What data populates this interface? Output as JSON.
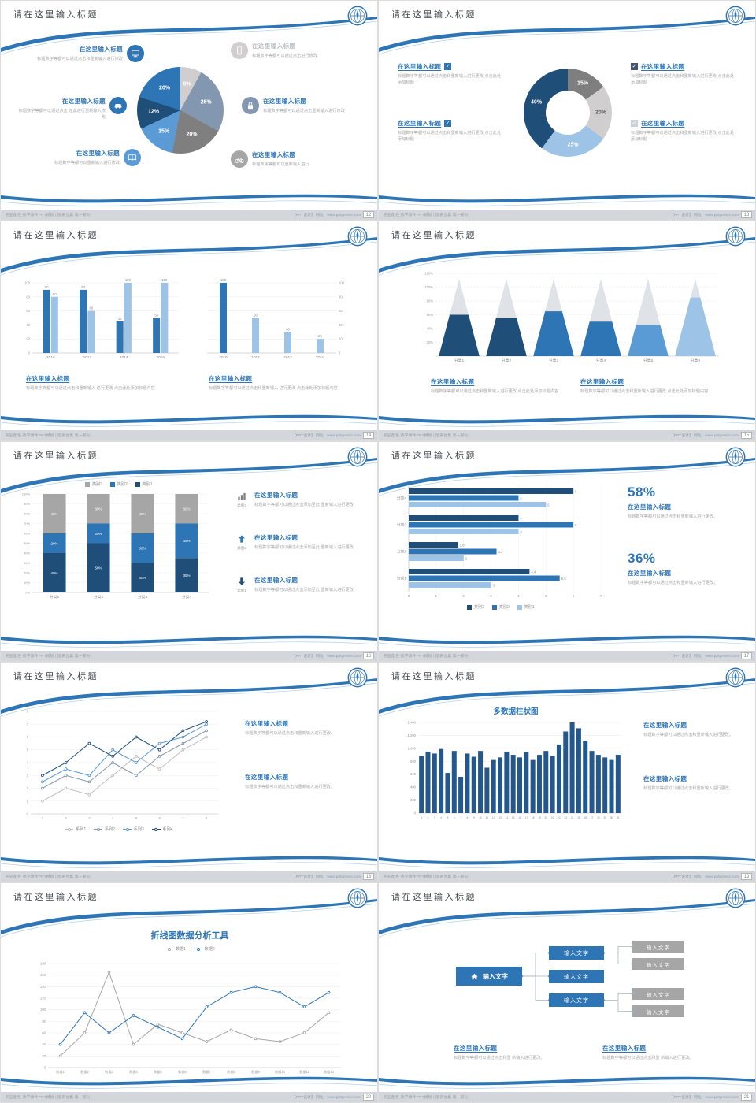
{
  "theme": {
    "accent": "#2e75b6",
    "accent_dark": "#1f4e79",
    "accent_mid": "#5b9bd5",
    "accent_light": "#9dc3e6",
    "gray_dark": "#7f7f7f",
    "gray": "#a6a6a6",
    "gray_light": "#d0cece"
  },
  "common": {
    "slide_title": "请在这里输入标题",
    "footer_left": "校园配色·教学课件PPT模板 | 图表合集 第一部分",
    "footer_right": "【PPT设计】 网址：www.pptgenius.com",
    "heading": "在这里输入标题"
  },
  "slides": [
    {
      "page": "12",
      "left_items": [
        {
          "icon": "monitor",
          "color": "#2e75b6",
          "heading": "在这里输入标题",
          "text": "标题数字等都可以通过点击和重新输入进行修改"
        },
        {
          "icon": "car",
          "color": "#2e75b6",
          "heading": "在这里输入标题",
          "text": "标题数字等都可以通过点击 在此进行重新输入修改"
        },
        {
          "icon": "book",
          "color": "#5b9bd5",
          "heading": "在这里输入标题",
          "text": "标题数字等都可以重新输入进行修改"
        }
      ],
      "right_items": [
        {
          "icon": "phone",
          "color": "#d0cece",
          "heading": "在这里输入标题",
          "text": "标题数字等都可以通过点击进行修改"
        },
        {
          "icon": "lock",
          "color": "#8497b0",
          "heading": "在这里输入标题",
          "text": "标题数字等都可以通过点击重新输入进行修改"
        },
        {
          "icon": "bike",
          "color": "#a6a6a6",
          "heading": "在这里输入标题",
          "text": "标题数字等都可以重新输入进行"
        }
      ],
      "chart_data": {
        "type": "pie",
        "slices": [
          {
            "label": "8%",
            "value": 8,
            "color": "#d0cece"
          },
          {
            "label": "25%",
            "value": 25,
            "color": "#8497b0"
          },
          {
            "label": "20%",
            "value": 20,
            "color": "#7f7f7f"
          },
          {
            "label": "15%",
            "value": 15,
            "color": "#5b9bd5"
          },
          {
            "label": "12%",
            "value": 12,
            "color": "#1f4e79"
          },
          {
            "label": "20%",
            "value": 20,
            "color": "#2e75b6"
          }
        ]
      }
    },
    {
      "page": "13",
      "left_items": [
        {
          "heading": "在这里输入标题",
          "checkbox_color": "#2e75b6",
          "text": "标题数字等都可以通过点击和重新输入进行更改 点击此处添加标题"
        },
        {
          "heading": "在这里输入标题",
          "checkbox_color": "#2e75b6",
          "text": "标题数字等都可以通过点击和重新输入进行更改 点击此处添加标题"
        }
      ],
      "right_items": [
        {
          "heading": "在这里输入标题",
          "checkbox_color": "#44546a",
          "text": "标题数字等都可以通过点击和重新输入进行更改 点击此处添加标题"
        },
        {
          "heading": "在这里输入标题",
          "checkbox_color": "#c9d1d9",
          "text": "标题数字等都可以通过点击和重新输入进行更改 点击此处添加标题"
        }
      ],
      "chart_data": {
        "type": "donut",
        "hole": 0.5,
        "slices": [
          {
            "label": "15%",
            "value": 15,
            "color": "#7f7f7f"
          },
          {
            "label": "20%",
            "value": 20,
            "color": "#d0cece",
            "label_color": "#595959"
          },
          {
            "label": "25%",
            "value": 25,
            "color": "#9dc3e6"
          },
          {
            "label": "40%",
            "value": 40,
            "color": "#1f4e79"
          }
        ]
      }
    },
    {
      "page": "14",
      "blocks": [
        {
          "heading": "在这里输入标题",
          "text": "标题数字等都可以通过点击和重新输入 进行更改 点击此处添加标题内容"
        },
        {
          "heading": "在这里输入标题",
          "text": "标题数字等都可以通过点击和重新输入 进行更改 点击此处添加标题内容"
        }
      ],
      "chart_data": [
        {
          "type": "bar",
          "ymax": 100,
          "ticks_side": "left",
          "yticks": [
            "0",
            "20",
            "40",
            "60",
            "80",
            "100"
          ],
          "categories": [
            "2010",
            "2012",
            "2014",
            "2016"
          ],
          "series": [
            {
              "name": "系列1",
              "color": "#2e75b6",
              "values": [
                90,
                90,
                45,
                50
              ]
            },
            {
              "name": "系列2",
              "color": "#9dc3e6",
              "values": [
                80,
                60,
                100,
                100
              ]
            }
          ]
        },
        {
          "type": "bar",
          "ymax": 100,
          "ticks_side": "right",
          "yticks": [
            "0",
            "20",
            "40",
            "60",
            "80",
            "100"
          ],
          "categories": [
            "2016",
            "2014",
            "2012",
            "2010"
          ],
          "series": [
            {
              "name": "数据",
              "color": "#9dc3e6",
              "colors": [
                "#2e75b6",
                "#9dc3e6",
                "#9dc3e6",
                "#9dc3e6"
              ],
              "values": [
                100,
                50,
                30,
                20
              ]
            }
          ]
        }
      ]
    },
    {
      "page": "15",
      "blocks": [
        {
          "heading": "在这里输入标题",
          "text": "标题数字等都可以通过点击和重新输入进行更改 点击此处添加标题内容"
        },
        {
          "heading": "在这里输入标题",
          "text": "标题数字等都可以通过点击和重新输入进行更改 点击此处添加标题内容"
        }
      ],
      "chart_data": {
        "type": "pyramid",
        "ymax": 120,
        "yticks": [
          "20%",
          "40%",
          "60%",
          "80%",
          "100%",
          "120%"
        ],
        "categories": [
          "分类1",
          "分类2",
          "分类3",
          "分类4",
          "分类5",
          "分类6"
        ],
        "values": [
          60,
          55,
          65,
          50,
          45,
          85
        ],
        "colors": [
          "#1f4e79",
          "#1f4e79",
          "#2e75b6",
          "#2e75b6",
          "#5b9bd5",
          "#9dc3e6"
        ]
      }
    },
    {
      "page": "16",
      "legend": [
        {
          "label": "类别3",
          "color": "#a6a6a6"
        },
        {
          "label": "类别2",
          "color": "#2e75b6"
        },
        {
          "label": "类别1",
          "color": "#1f4e79"
        }
      ],
      "chart_data": {
        "type": "stacked",
        "yticks": [
          "0%",
          "10%",
          "20%",
          "30%",
          "40%",
          "50%",
          "60%",
          "70%",
          "80%",
          "90%",
          "100%"
        ],
        "categories": [
          "分类1",
          "分类2",
          "分类3",
          "分类4"
        ],
        "series": [
          {
            "name": "类别1",
            "color": "#1f4e79",
            "values": [
              40,
              50,
              30,
              35
            ]
          },
          {
            "name": "类别2",
            "color": "#2e75b6",
            "values": [
              20,
              20,
              30,
              35
            ]
          },
          {
            "name": "类别3",
            "color": "#a6a6a6",
            "values": [
              40,
              30,
              40,
              30
            ]
          }
        ]
      },
      "right_items": [
        {
          "icon": "chart-bars",
          "tag": "类别3",
          "heading": "在这里输入标题",
          "text": "标题数字等都可以通过点击添加至此 重新输入进行更改"
        },
        {
          "icon": "arrow-up",
          "tag": "类别2",
          "heading": "在这里输入标题",
          "text": "标题数字等都可以通过点击添加至此 重新输入进行更改"
        },
        {
          "icon": "arrow-down",
          "tag": "类别1",
          "heading": "在这里输入标题",
          "text": "标题数字等都可以通过点击添加至此 重新输入进行更改"
        }
      ]
    },
    {
      "page": "17",
      "chart_data": {
        "type": "hbar",
        "xmax": 7,
        "xticks": [
          "0",
          "1",
          "2",
          "3",
          "4",
          "5",
          "6",
          "7"
        ],
        "categories": [
          "分类4",
          "分类3",
          "分类2",
          "分类1"
        ],
        "series": [
          {
            "name": "类别3",
            "color": "#1f4e79",
            "values": [
              6,
              4,
              1.8,
              4.4
            ]
          },
          {
            "name": "类别2",
            "color": "#2e75b6",
            "values": [
              4,
              6,
              3.2,
              5.5
            ]
          },
          {
            "name": "类别1",
            "color": "#9dc3e6",
            "values": [
              5,
              4,
              2,
              3
            ]
          }
        ]
      },
      "legend": [
        {
          "label": "类别3",
          "color": "#1f4e79"
        },
        {
          "label": "类别2",
          "color": "#2e75b6"
        },
        {
          "label": "类别1",
          "color": "#9dc3e6"
        }
      ],
      "stats": [
        {
          "value": "58%",
          "heading": "在这里输入标题",
          "text": "标题数字等都可以通过点击和重新输入进行更改。"
        },
        {
          "value": "36%",
          "heading": "在这里输入标题",
          "text": "标题数字等都可以通过点击和重新输入进行更改。"
        }
      ]
    },
    {
      "page": "18",
      "chart_data": {
        "type": "line",
        "ymax": 8,
        "yticks": [
          "0",
          "1",
          "2",
          "3",
          "4",
          "5",
          "6",
          "7",
          "8"
        ],
        "x": [
          "1",
          "2",
          "3",
          "4",
          "5",
          "6",
          "7",
          "8"
        ],
        "series": [
          {
            "name": "系列1",
            "color": "#bfbfbf",
            "values": [
              1,
              2,
              1.5,
              3,
              4.5,
              3.5,
              5,
              6
            ]
          },
          {
            "name": "系列2",
            "color": "#8497b0",
            "values": [
              2,
              3,
              2.5,
              4,
              3,
              4.5,
              5.5,
              6.5
            ]
          },
          {
            "name": "系列3",
            "color": "#5b9bd5",
            "values": [
              2.5,
              3.5,
              3,
              5,
              4,
              5.5,
              6,
              7
            ]
          },
          {
            "name": "系列4",
            "color": "#1f4e79",
            "values": [
              3,
              4,
              5.5,
              4.5,
              6,
              5,
              6.5,
              7.2
            ]
          }
        ]
      },
      "legend": [
        {
          "label": "系列1",
          "color": "#bfbfbf"
        },
        {
          "label": "系列2",
          "color": "#8497b0"
        },
        {
          "label": "系列3",
          "color": "#5b9bd5"
        },
        {
          "label": "系列4",
          "color": "#1f4e79"
        }
      ],
      "blocks": [
        {
          "heading": "在这里输入标题",
          "text": "标题数字等都可以通过点击和重新输入进行更改。"
        },
        {
          "heading": "在这里输入标题",
          "text": "标题数字等都可以通过点击和重新输入进行更改。"
        }
      ]
    },
    {
      "page": "19",
      "chart_title": "多数据柱状图",
      "chart_data": {
        "type": "bar",
        "ymax": 1400,
        "ticks_side": "left",
        "labels": false,
        "cat_font": 3.2,
        "yticks": [
          "0",
          "200",
          "400",
          "600",
          "800",
          "1,000",
          "1,200",
          "1,400"
        ],
        "categories": [
          "1",
          "2",
          "3",
          "4",
          "5",
          "6",
          "7",
          "8",
          "9",
          "10",
          "11",
          "12",
          "13",
          "14",
          "15",
          "16",
          "17",
          "18",
          "19",
          "20",
          "21",
          "22",
          "23",
          "24",
          "25",
          "26",
          "27",
          "28",
          "29",
          "30",
          "31"
        ],
        "series": [
          {
            "name": "数据",
            "color": "#24588c",
            "values": [
              880,
              950,
              920,
              990,
              620,
              960,
              560,
              920,
              870,
              960,
              700,
              820,
              860,
              950,
              900,
              860,
              950,
              820,
              900,
              960,
              880,
              1060,
              1260,
              1400,
              1310,
              1120,
              960,
              900,
              860,
              820,
              900
            ]
          }
        ]
      },
      "blocks": [
        {
          "heading": "在这里输入标题",
          "text": "标题数字等都可以通过点击和重新输入进行更改。"
        },
        {
          "heading": "在这里输入标题",
          "text": "标题数字等都可以通过点击和重新输入进行更改。"
        }
      ]
    },
    {
      "page": "20",
      "chart_title": "折线图数据分析工具",
      "legend": [
        {
          "label": "数据1",
          "color": "#a6a6a6"
        },
        {
          "label": "数据2",
          "color": "#2e75b6"
        }
      ],
      "chart_data": {
        "type": "line",
        "ymax": 180,
        "xfont": 4.2,
        "yticks": [
          "0",
          "20",
          "40",
          "60",
          "80",
          "100",
          "120",
          "140",
          "160",
          "180"
        ],
        "x": [
          "数据1",
          "数据2",
          "数据3",
          "数据4",
          "数据5",
          "数据6",
          "数据7",
          "数据8",
          "数据9",
          "数据10",
          "数据11",
          "数据12"
        ],
        "series": [
          {
            "name": "数据1",
            "color": "#a6a6a6",
            "values": [
              20,
              60,
              165,
              40,
              75,
              60,
              45,
              65,
              50,
              45,
              60,
              95
            ]
          },
          {
            "name": "数据2",
            "color": "#2e75b6",
            "values": [
              40,
              95,
              60,
              90,
              70,
              50,
              105,
              130,
              140,
              130,
              105,
              130
            ]
          }
        ]
      }
    },
    {
      "page": "21",
      "diagram": {
        "root_label": "输入文字",
        "blue_boxes": [
          "输入文字",
          "输入文字",
          "输入文字"
        ],
        "gray_boxes": [
          "输入文字",
          "输入文字",
          "输入文字",
          "输入文字"
        ]
      },
      "blocks": [
        {
          "heading": "在这里输入标题",
          "text": "标题数字等都可以通过点击和重 新输入进行更改。"
        },
        {
          "heading": "在这里输入标题",
          "text": "标题数字等都可以通过点击和重 新输入进行更改。"
        }
      ]
    }
  ]
}
